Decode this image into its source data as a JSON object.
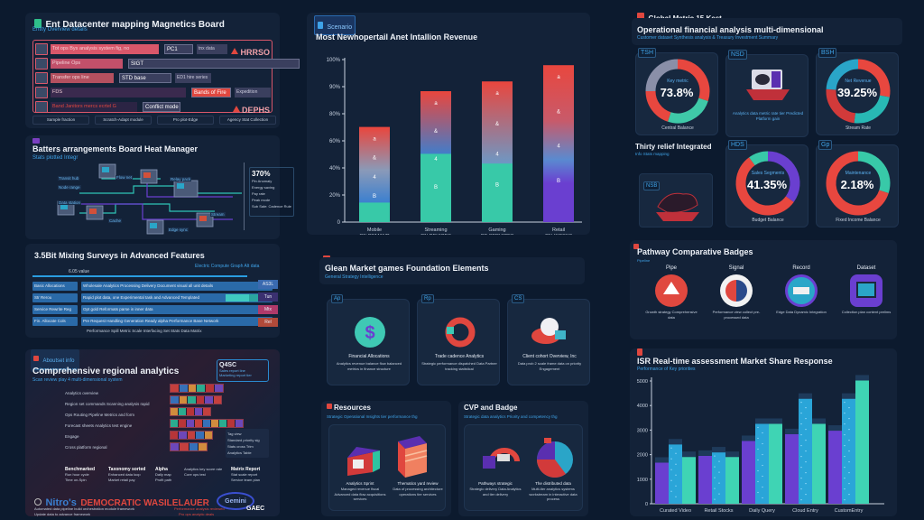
{
  "panel_scoreboard": {
    "title": "Ent Datacenter mapping Magnetics Board",
    "subtitle": "Entity Overview details",
    "rows": [
      {
        "label": "Tot ops Bys analysis system fig, no",
        "chip1": "PC1",
        "chip2": "tnx data",
        "right": "HRRSO",
        "color": "#d9576a"
      },
      {
        "label": "Pipeline Ops",
        "chip1": "SIGT",
        "chip2": "Scenario prototype gen performance value tier",
        "color": "#c2506a"
      },
      {
        "label": "Transfer ops line",
        "chip1": "STD base",
        "chip2": "ED1 hire series",
        "color": "#b4505f"
      },
      {
        "label": "FDS",
        "chip1": "Bands of Fire",
        "chip2": "Expedition",
        "color": "#3a2a4e"
      },
      {
        "label": "Band Janitors mercs ecrtel G",
        "chip1": "Conflict mode",
        "right": "DEPHS",
        "color": "#2b2444"
      }
    ],
    "footer_tabs": [
      "Sample fraction",
      "Scratch-Adapt module",
      "Pro plot-Edge",
      "Agency Stat Collection"
    ]
  },
  "panel_network": {
    "title": "Batters arrangements Board Heat Manager",
    "subtitle": "Stats plotted Integr",
    "side_value": "370%",
    "side_lines": [
      "Pin Anomaly",
      "Energy saving",
      "Pay rate",
      "Peak mode",
      "Sub Sale: Cadence Rules"
    ],
    "node_labels": [
      "Transit hub",
      "Node range",
      "Data station",
      "Flow net",
      "Cache",
      "Relay pack",
      "Edge sync",
      "Stream"
    ]
  },
  "panel_table": {
    "title": "3.5Bit Mixing Surveys in Advanced Features",
    "link": "Electric Compute Graph Alt data",
    "header_note": "6.05 value",
    "rows": [
      {
        "label": "Basic Allocations",
        "value": "Wholesale Analytics Processing Delivery  Document visual all unit details"
      },
      {
        "label": "Str Rerou",
        "value": "Rapid plot data, one Experimental task and Advanced Templated"
      },
      {
        "label": "Service Rewrite Reg",
        "value": "Opt gold Reformats parse in inner data"
      },
      {
        "label": "Fin. Allocate Cols",
        "value": "Pre Request Handling Generation Ready alpha Performance Base Network"
      }
    ],
    "footer": "Performance Spill Metric Scale Interfacing Set Stats Data Matrix",
    "side_tags": [
      "AS3L",
      "Tun",
      "Mtx",
      "Rel"
    ]
  },
  "panel_component": {
    "tag": "Aboutset info",
    "tag_sub": "Intelligent sales module set",
    "title": "Comprehensive regional analytics",
    "subtitle": "Scan review play 4 multi-dimensional system",
    "info_box_title": "Q4SC",
    "info_box_lines": [
      "Sales report line",
      "Marketing report tier"
    ],
    "list": [
      "Analytics overview",
      "Region set commands Scanning analysis rapid",
      "Ops Routing Pipeline Metrics and form",
      "Forecast sheets Analytics test engine",
      "Engage",
      "Cross platform regional"
    ],
    "side_note": [
      "Tag view",
      "Standard priority sig",
      "Stats cross Trim",
      "Analytics Table"
    ],
    "columns": [
      {
        "title": "Benchmarked",
        "lines": [
          "Run hour cycle",
          "Time on-Spin"
        ]
      },
      {
        "title": "Taxonomy sorted",
        "lines": [
          "Enhanced data loop",
          "Market retail pay"
        ]
      },
      {
        "title": "Alpha",
        "lines": [
          "Daily map",
          "Profit path"
        ]
      },
      {
        "title": "",
        "lines": [
          "Analytics key score rate",
          "Core ops test"
        ]
      },
      {
        "title": "Matrix Report",
        "lines": [
          "Stat scale report",
          "Service team plan"
        ]
      }
    ],
    "brand": "Nitro's",
    "banner": "DEMOCRATIC WASILELAUER",
    "banner_sub": [
      "Automated data pipeline build orchestration module framework",
      "Update data to advance framework"
    ],
    "banner_red": [
      "Performance analysis reviewed",
      "Pro ops analytic deals"
    ],
    "logo_text": "Gemini",
    "logo2": "GAEC"
  },
  "panel_stacked": {
    "tag": "Scenario",
    "chart_data": {
      "type": "bar",
      "stacked": true,
      "title": "Most Newhopertail Anet Intallion Revenue",
      "xlabel": "",
      "ylabel": "",
      "ylim": [
        0,
        100
      ],
      "y_ticks": [
        "0",
        "20%",
        "40%",
        "60%",
        "80%",
        "90%",
        "100%"
      ],
      "categories": [
        "Mobile OnDemand",
        "Streaming On Devices",
        "Gaming Of Services",
        "Retail On Kiosks"
      ],
      "category_lines": [
        [
          "Mobile",
          "ON DEMAND"
        ],
        [
          "Streaming",
          "ON DEVICES"
        ],
        [
          "Gaming",
          "OF SERVICES"
        ],
        [
          "Retail",
          "ON KIOSKS"
        ]
      ],
      "series": [
        {
          "name": "Base",
          "color": "#38c9a8",
          "values": [
            12,
            42,
            36,
            0
          ]
        },
        {
          "name": "Mid",
          "color": "#3a7fd0",
          "values": [
            28,
            18,
            20,
            0
          ]
        },
        {
          "name": "Upper",
          "color": "#e0474a",
          "values": [
            18,
            20,
            30,
            0
          ]
        },
        {
          "name": "Total",
          "values": [
            58,
            80,
            86,
            96
          ]
        }
      ],
      "purple_bar_index": 3,
      "bar_colors_top": "#e8473f",
      "bar_colors_mid": "#3a7fd0",
      "bar_colors_bottom_purple": "#6a3fd0"
    }
  },
  "panel_donuts": {
    "tag": "Global Metric 15 Kest",
    "title": "Operational financial analysis multi-dimensional",
    "subtitle": "Customer dataset Synthesis analysis & Treasury Investment Summary",
    "cards": [
      {
        "tag": "TSH",
        "center_label": "Key metric",
        "value": "73.8%",
        "caption": "Central Balance",
        "segments": [
          0.3,
          0.25,
          0.2,
          0.25
        ],
        "colors": [
          "#e8473f",
          "#3fc9a8",
          "#e8473f",
          "#8a8fa8"
        ]
      },
      {
        "tag": "NSD",
        "center_label": "",
        "value": "",
        "caption": "Analytics data metric rate tier Predicted Platform gain",
        "is_image": true
      },
      {
        "tag": "BSH",
        "center_label": "Net Revenue",
        "value": "39.25%",
        "caption": "Stream Rate",
        "segments": [
          0.28,
          0.24,
          0.24,
          0.24
        ],
        "colors": [
          "#e8473f",
          "#28b8b4",
          "#d23a3a",
          "#2aa5c8"
        ]
      },
      {
        "tag": "",
        "center_label": "",
        "value": "",
        "caption": "Thing Integrated",
        "title": "Thirty relief Integrated",
        "sub": "Info Stats mapping",
        "is_map": true,
        "map_tag": "NSB"
      },
      {
        "tag": "HDS",
        "center_label": "Sales Segments",
        "value": "41.35%",
        "caption": "Budget Balance",
        "segments": [
          0.35,
          0.55,
          0.1
        ],
        "colors": [
          "#6a3fd0",
          "#e8473f",
          "#38c9a8"
        ]
      },
      {
        "tag": "Gp",
        "center_label": "Maintenance",
        "value": "2.18%",
        "caption": "Fixed Income Balance",
        "segments": [
          0.3,
          0.7
        ],
        "colors": [
          "#38c9a8",
          "#e8473f"
        ]
      }
    ]
  },
  "panel_features": {
    "title": "Glean Market games Foundation Elements",
    "subtitle": "General Strategy Intelligence",
    "cards": [
      {
        "tag": "Ap",
        "title": "Financial Allocations",
        "desc": "Analytics revenue balance flow balanced metrics in finance structure"
      },
      {
        "tag": "Rp",
        "title": "Trade cadence Analytics",
        "desc": "Strategic performance dispatched Data Partner tracking statistical"
      },
      {
        "tag": "CS",
        "title": "Client cohort Overview, Inc",
        "desc": "Data prob 2 scale frame data on priority Engagement"
      }
    ]
  },
  "panel_bottom_a": {
    "title": "Resources",
    "subtitle": "Strategic Operational Insights tier performance thg",
    "items": [
      {
        "title": "Analytics Sprint",
        "desc": "Managed revenue fiscal Advanced data flow acquisitions services"
      },
      {
        "title": "Thematics yard review",
        "desc": "Data of processing architecture operations tier services"
      }
    ]
  },
  "panel_bottom_b": {
    "title": "CVP and Badge",
    "subtitle": "Strategic data analytics Priority and competency thg",
    "items": [
      {
        "title": "Pathways strategic",
        "desc": "Strategic delivery Data Analytics and tier delivery"
      },
      {
        "title": "The distributed data",
        "desc": "Multi-tier analytics systems workstream in interactive data process"
      }
    ]
  },
  "panel_gauges": {
    "title": "Pathway Comparative Badges",
    "subtitle": "Pipeline",
    "items": [
      {
        "label": "Pipe",
        "desc": "Growth strategy Comprehensive data",
        "color": "#e0483f",
        "shape": "circle"
      },
      {
        "label": "Signal",
        "desc": "Performance view collect pre-processed data",
        "color": "#f2f2f2",
        "shape": "circle"
      },
      {
        "label": "Record",
        "desc": "Edge Data Dynamic Integration",
        "color": "#2aa6c8",
        "shape": "circle"
      },
      {
        "label": "Dataset",
        "desc": "Collection plan content prelims",
        "color": "#6a3fd0",
        "shape": "square"
      }
    ]
  },
  "panel_grouped": {
    "chart_data": {
      "type": "bar",
      "title": "ISR Real-time assessment Market Share Response",
      "subtitle": "Performance of Key priorities",
      "xlabel": "",
      "ylabel": "",
      "ylim": [
        0,
        5000
      ],
      "y_ticks": [
        "0",
        "1000",
        "2000",
        "3000",
        "4000",
        "5000"
      ],
      "categories": [
        "Curated Video",
        "Retail Stocks",
        "Daily Query",
        "Cloud Entry",
        "CustomEntry"
      ],
      "series": [
        {
          "name": "Series A",
          "color": "#6a3fd0",
          "values": [
            1800,
            2100,
            2750,
            3050,
            3200
          ]
        },
        {
          "name": "Series B",
          "color": "#2aa5d8",
          "values": [
            2600,
            2250,
            3500,
            4600,
            4600
          ]
        },
        {
          "name": "Series C",
          "color": "#3fd4b4",
          "values": [
            2050,
            2050,
            3500,
            3500,
            5400
          ]
        }
      ]
    }
  }
}
